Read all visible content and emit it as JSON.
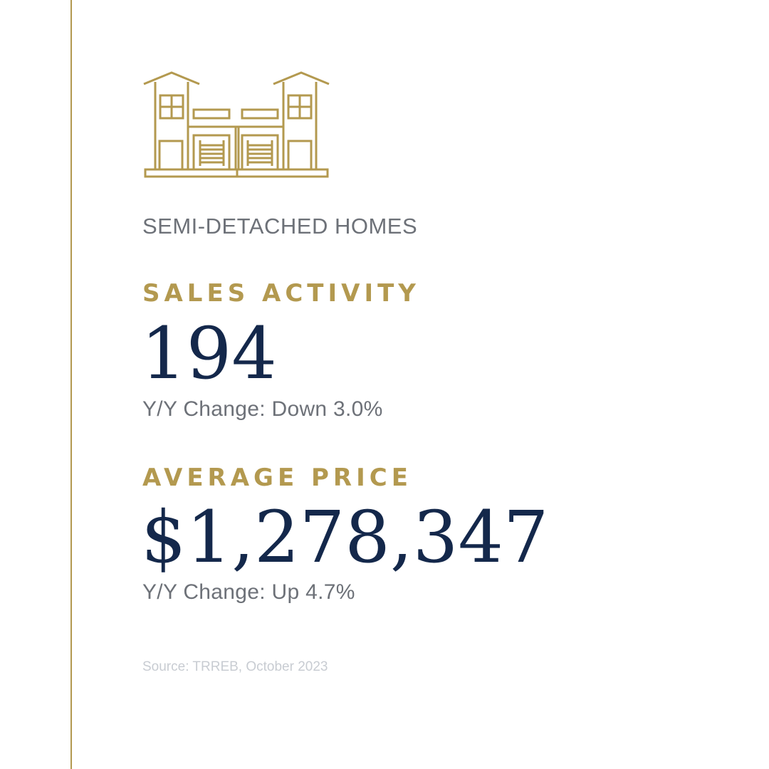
{
  "colors": {
    "gold": "#b3994f",
    "navy": "#14284b",
    "gray": "#6d7178",
    "light_gray": "#c8ccd2"
  },
  "icon": "semi-detached-house-icon",
  "category": "SEMI-DETACHED HOMES",
  "sales_activity": {
    "label": "SALES ACTIVITY",
    "value": "194",
    "change": "Y/Y Change: Down 3.0%"
  },
  "average_price": {
    "label": "AVERAGE PRICE",
    "value": "$1,278,347",
    "change": "Y/Y Change: Up 4.7%"
  },
  "source": "Source: TRREB, October 2023"
}
